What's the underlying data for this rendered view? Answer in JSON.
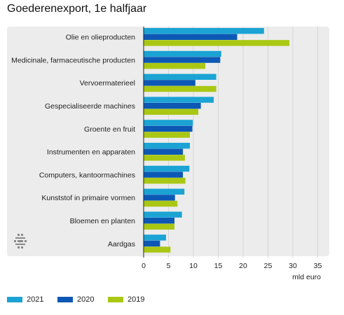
{
  "title": "Goederenexport, 1e halfjaar",
  "colors": {
    "s2021": "#1ba3d4",
    "s2020": "#0c58b4",
    "s2019": "#a9c713",
    "panel": "#ececec",
    "grid": "#d6d6d6"
  },
  "logo_icon": "cbs-logo-icon",
  "chart_data": {
    "type": "bar",
    "orientation": "horizontal",
    "title": "Goederenexport, 1e halfjaar",
    "xlabel": "mld euro",
    "xlim": [
      0,
      35
    ],
    "x_ticks": [
      0,
      5,
      10,
      15,
      20,
      25,
      30,
      35
    ],
    "grid": true,
    "legend_position": "bottom",
    "categories": [
      "Olie en olieproducten",
      "Medicinale, farmaceutische producten",
      "Vervoermaterieel",
      "Gespecialiseerde machines",
      "Groente en fruit",
      "Instrumenten en apparaten",
      "Computers, kantoormachines",
      "Kunststof in primaire vormen",
      "Bloemen en planten",
      "Aardgas"
    ],
    "series": [
      {
        "name": "2021",
        "color": "#1ba3d4",
        "values": [
          24.2,
          15.6,
          14.6,
          14.1,
          9.9,
          9.3,
          9.2,
          8.2,
          7.7,
          4.5
        ]
      },
      {
        "name": "2020",
        "color": "#0c58b4",
        "values": [
          18.8,
          15.4,
          10.4,
          11.5,
          9.8,
          7.9,
          7.9,
          6.3,
          6.2,
          3.3
        ]
      },
      {
        "name": "2019",
        "color": "#a9c713",
        "values": [
          29.3,
          12.4,
          14.6,
          11.0,
          9.3,
          8.3,
          8.4,
          6.8,
          6.2,
          5.4
        ]
      }
    ]
  }
}
